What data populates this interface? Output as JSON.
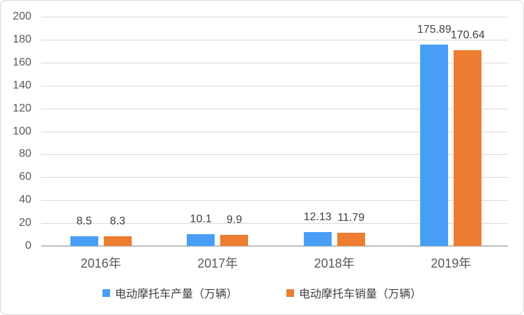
{
  "chart_data": {
    "type": "bar",
    "categories": [
      "2016年",
      "2017年",
      "2018年",
      "2019年"
    ],
    "series": [
      {
        "name": "电动摩托车产量（万辆）",
        "color": "#489EF5",
        "values": [
          8.5,
          10.1,
          12.13,
          175.89
        ],
        "data_labels": [
          "8.5",
          "10.1",
          "12.13",
          "175.89"
        ]
      },
      {
        "name": "电动摩托车销量（万辆）",
        "color": "#EC7D31",
        "values": [
          8.3,
          9.9,
          11.79,
          170.64
        ],
        "data_labels": [
          "8.3",
          "9.9",
          "11.79",
          "170.64"
        ]
      }
    ],
    "title": "",
    "xlabel": "",
    "ylabel": "",
    "ylim": [
      0,
      200
    ],
    "yticks": [
      0,
      20,
      40,
      60,
      80,
      100,
      120,
      140,
      160,
      180,
      200
    ],
    "grid": true,
    "legend_position": "bottom"
  },
  "colors": {
    "background": "#FFFFFF",
    "border": "#D9D9D9",
    "gridline": "#D9D9D9",
    "axis_line": "#BFBFBF",
    "tick_label": "#595959",
    "category_label": "#595959",
    "data_label": "#404040",
    "legend_text": "#404040",
    "series_blue": "#489EF5",
    "series_orange": "#EC7D31"
  }
}
